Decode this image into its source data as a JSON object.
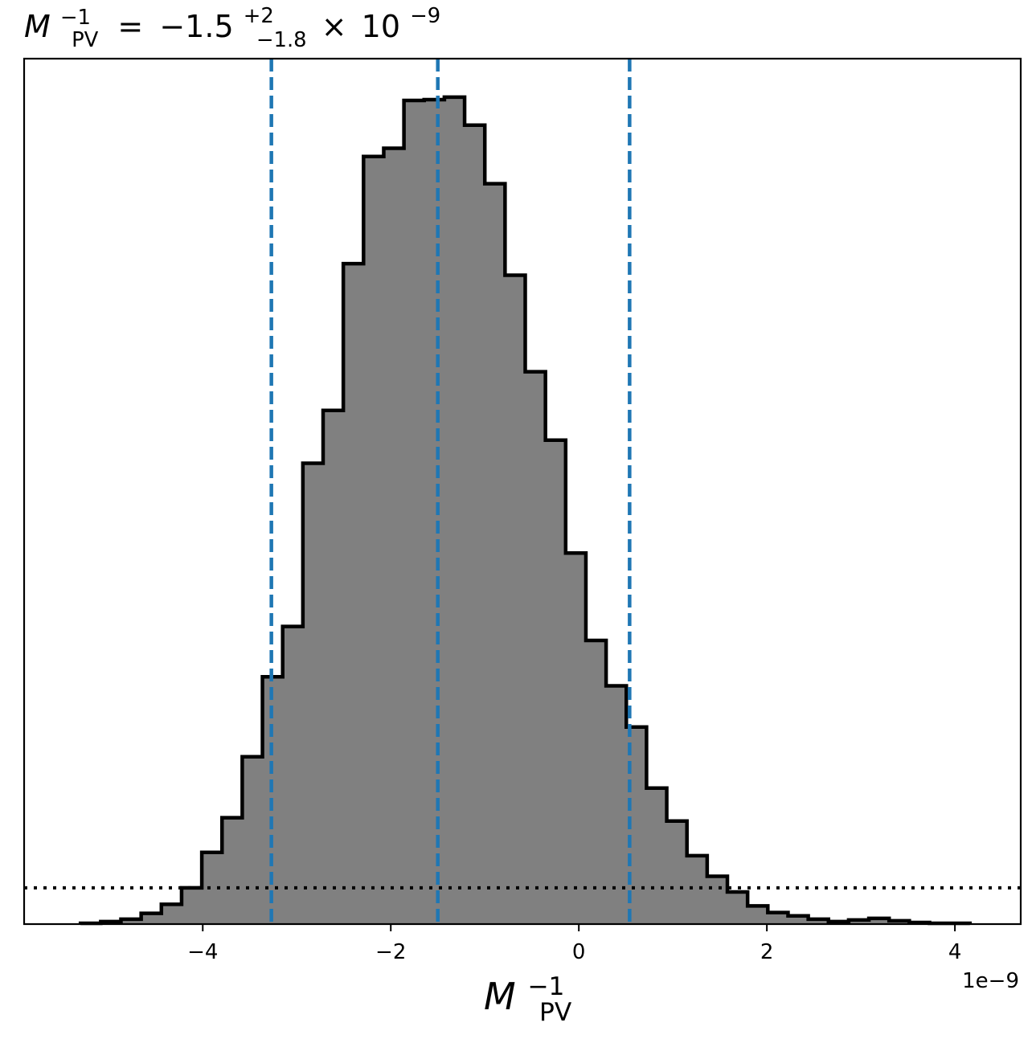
{
  "chart_data": {
    "type": "histogram",
    "title": {
      "symbol": "M",
      "symbol_sub": "PV",
      "symbol_sup": "−1",
      "equals": "=",
      "value": "−1.5",
      "upper_err": "+2",
      "lower_err": "−1.8",
      "times": "×",
      "power_base": "10",
      "power_exp": "−9"
    },
    "xlabel": {
      "symbol": "M",
      "sub": "PV",
      "sup": "−1"
    },
    "x_offset_text": "1e−9",
    "xlim": [
      -5.9,
      4.7
    ],
    "ylim": [
      0,
      1.0
    ],
    "x_ticks": [
      -4,
      -2,
      0,
      2,
      4
    ],
    "x_tick_labels": [
      "−4",
      "−2",
      "0",
      "2",
      "4"
    ],
    "y_ticks_shown": false,
    "bin_edges": [
      -5.3,
      -5.085,
      -4.87,
      -4.655,
      -4.44,
      -4.225,
      -4.01,
      -3.795,
      -3.58,
      -3.365,
      -3.15,
      -2.935,
      -2.72,
      -2.505,
      -2.29,
      -2.075,
      -1.86,
      -1.645,
      -1.43,
      -1.215,
      -1.0,
      -0.785,
      -0.57,
      -0.355,
      -0.14,
      0.075,
      0.29,
      0.505,
      0.72,
      0.935,
      1.15,
      1.365,
      1.58,
      1.795,
      2.01,
      2.225,
      2.44,
      2.655,
      2.87,
      3.085,
      3.3,
      3.515,
      3.73,
      3.945,
      4.16
    ],
    "counts": [
      0.001,
      0.003,
      0.006,
      0.013,
      0.024,
      0.044,
      0.087,
      0.129,
      0.203,
      0.3,
      0.361,
      0.559,
      0.623,
      0.801,
      0.931,
      0.941,
      0.999,
      1.0,
      1.003,
      0.969,
      0.898,
      0.787,
      0.67,
      0.587,
      0.45,
      0.344,
      0.289,
      0.239,
      0.165,
      0.125,
      0.083,
      0.058,
      0.039,
      0.022,
      0.014,
      0.01,
      0.006,
      0.003,
      0.005,
      0.007,
      0.004,
      0.002,
      0.001,
      0.001
    ],
    "hist_fill": "#808080",
    "hist_edge": "#000000",
    "quantile_lines": {
      "values": [
        -3.27,
        -1.5,
        0.54
      ],
      "color": "#1f77b4",
      "style": "dashed"
    },
    "threshold_line": {
      "y": 0.044,
      "color": "#000000",
      "style": "dotted"
    },
    "grid": false
  }
}
